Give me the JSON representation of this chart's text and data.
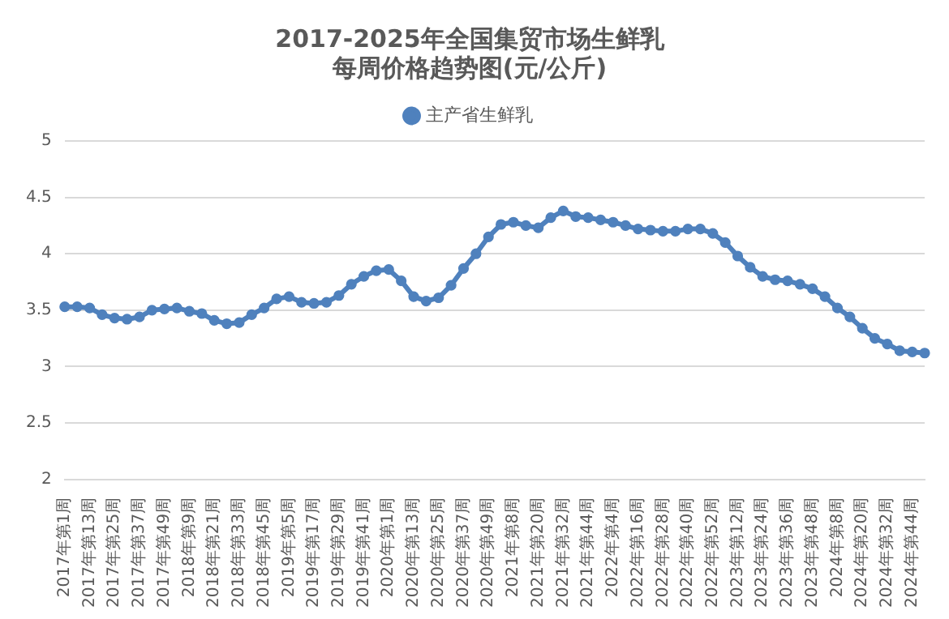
{
  "chart_data": {
    "type": "line",
    "title": "2017-2025年全国集贸市场生鲜乳每周价格趋势图(元/公斤)",
    "categories": [
      "2017年第1周",
      null,
      "2017年第13周",
      null,
      "2017年第25周",
      null,
      "2017年第37周",
      null,
      "2017年第49周",
      null,
      "2018年第9周",
      null,
      "2018年第21周",
      null,
      "2018年第33周",
      null,
      "2018年第45周",
      null,
      "2019年第5周",
      null,
      "2019年第17周",
      null,
      "2019年第29周",
      null,
      "2019年第41周",
      null,
      "2020年第1周",
      null,
      "2020年第13周",
      null,
      "2020年第25周",
      null,
      "2020年第37周",
      null,
      "2020年第49周",
      null,
      "2021年第8周",
      null,
      "2021年第20周",
      null,
      "2021年第32周",
      null,
      "2021年第44周",
      null,
      "2022年第4周",
      null,
      "2022年第16周",
      null,
      "2022年第28周",
      null,
      "2022年第40周",
      null,
      "2022年第52周",
      null,
      "2023年第12周",
      null,
      "2023年第24周",
      null,
      "2023年第36周",
      null,
      "2023年第48周",
      null,
      "2024年第8周",
      null,
      "2024年第20周",
      null,
      "2024年第32周",
      null,
      "2024年第44周",
      null
    ],
    "series": [
      {
        "name": "主产省生鲜乳",
        "color": "#4f81bd",
        "values": [
          3.53,
          3.53,
          3.52,
          3.46,
          3.43,
          3.42,
          3.44,
          3.5,
          3.51,
          3.52,
          3.49,
          3.47,
          3.41,
          3.38,
          3.39,
          3.46,
          3.52,
          3.6,
          3.62,
          3.57,
          3.56,
          3.57,
          3.63,
          3.73,
          3.8,
          3.85,
          3.86,
          3.76,
          3.62,
          3.58,
          3.61,
          3.72,
          3.87,
          4.0,
          4.15,
          4.26,
          4.28,
          4.25,
          4.23,
          4.32,
          4.38,
          4.33,
          4.32,
          4.3,
          4.28,
          4.25,
          4.22,
          4.21,
          4.2,
          4.2,
          4.22,
          4.22,
          4.18,
          4.1,
          3.98,
          3.88,
          3.8,
          3.77,
          3.76,
          3.73,
          3.69,
          3.62,
          3.52,
          3.44,
          3.34,
          3.25,
          3.2,
          3.14,
          3.13,
          3.12
        ]
      }
    ],
    "ylim": [
      2,
      5
    ],
    "yticks": [
      2,
      2.5,
      3,
      3.5,
      4,
      4.5,
      5
    ],
    "grid": "y",
    "legend": "top",
    "marker": "circle",
    "line_style": "solid"
  }
}
